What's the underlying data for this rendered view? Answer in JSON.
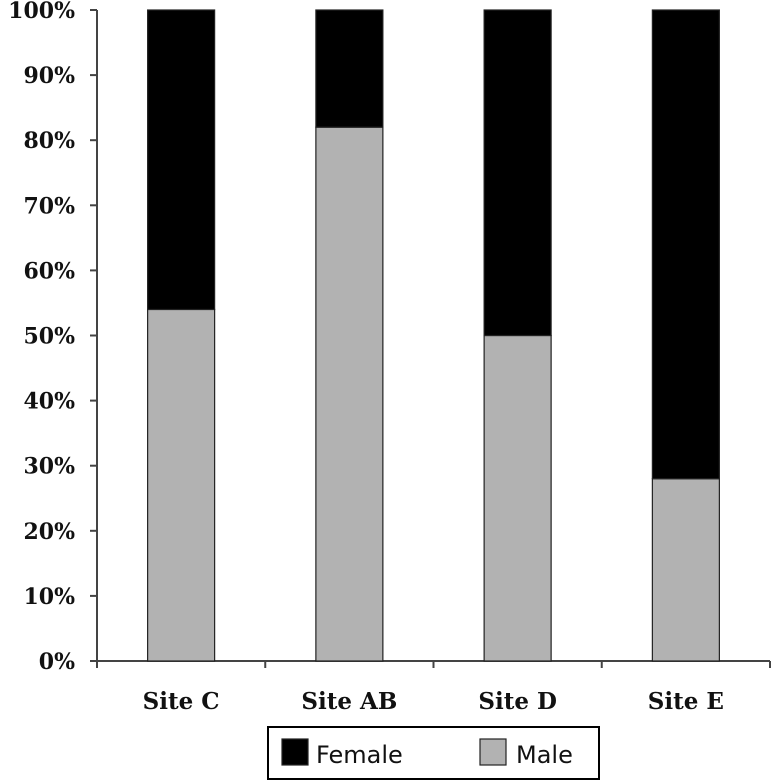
{
  "chart_data": {
    "type": "bar",
    "stacked": true,
    "percent_scale": true,
    "title": "",
    "xlabel": "",
    "ylabel": "",
    "categories": [
      "Site C",
      "Site AB",
      "Site D",
      "Site E"
    ],
    "series": [
      {
        "name": "Male",
        "values": [
          54,
          82,
          50,
          28
        ],
        "color": "#b2b2b2"
      },
      {
        "name": "Female",
        "values": [
          46,
          18,
          50,
          72
        ],
        "color": "#000000"
      }
    ],
    "ylim": [
      0,
      100
    ],
    "yticks": [
      "0%",
      "10%",
      "20%",
      "30%",
      "40%",
      "50%",
      "60%",
      "70%",
      "80%",
      "90%",
      "100%"
    ],
    "grid": false,
    "legend": {
      "position": "bottom",
      "entries": [
        {
          "label": "Female",
          "color": "#000000"
        },
        {
          "label": "Male",
          "color": "#b2b2b2"
        }
      ]
    }
  }
}
